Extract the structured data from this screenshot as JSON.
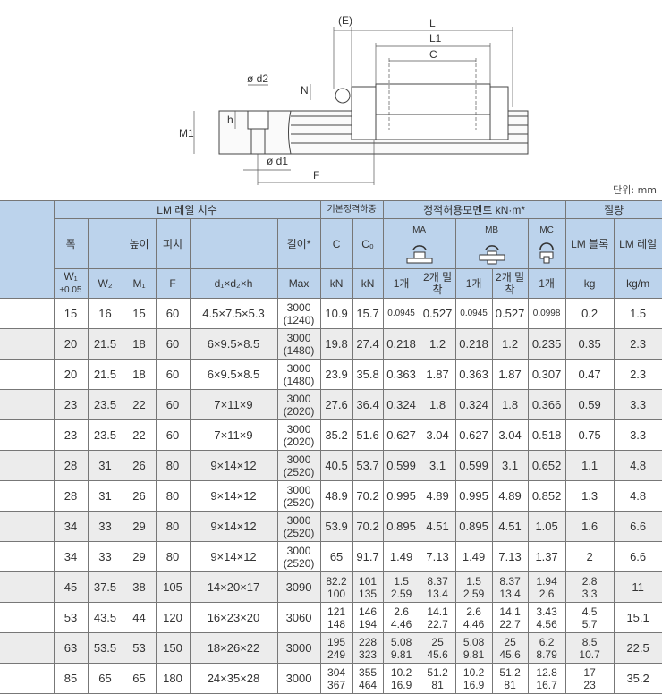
{
  "diagram": {
    "labels": {
      "E": "(E)",
      "L": "L",
      "L1": "L1",
      "C": "C",
      "N": "N",
      "d2": "ø d2",
      "h": "h",
      "M1": "M1",
      "d1": "ø d1",
      "F": "F"
    }
  },
  "unit": "단위: mm",
  "header": {
    "group_rail": "LM 레일 치수",
    "group_load": "기본정격하중",
    "group_moment": "정적허용모멘트 kN·m*",
    "group_mass": "질량",
    "width": "폭",
    "height": "높이",
    "pitch": "피치",
    "length": "길이*",
    "C": "C",
    "C0": "C₀",
    "MA": "MA",
    "MB": "MB",
    "MC": "MC",
    "block": "LM 블록",
    "rail": "LM 레일",
    "W1": "W₁",
    "W1_tol": "±0.05",
    "W2": "W₂",
    "M1": "M₁",
    "F": "F",
    "dxh": "d₁×d₂×h",
    "max": "Max",
    "kN": "kN",
    "kN0": "kN",
    "one": "1개",
    "two": "2개 밀착",
    "kg": "kg",
    "kgm": "kg/m"
  },
  "rows": [
    [
      "15",
      "16",
      "15",
      "60",
      "4.5×7.5×5.3",
      "3000\n(1240)",
      "10.9",
      "15.7",
      "0.0945",
      "0.527",
      "0.0945",
      "0.527",
      "0.0998",
      "0.2",
      "1.5"
    ],
    [
      "20",
      "21.5",
      "18",
      "60",
      "6×9.5×8.5",
      "3000\n(1480)",
      "19.8",
      "27.4",
      "0.218",
      "1.2",
      "0.218",
      "1.2",
      "0.235",
      "0.35",
      "2.3"
    ],
    [
      "20",
      "21.5",
      "18",
      "60",
      "6×9.5×8.5",
      "3000\n(1480)",
      "23.9",
      "35.8",
      "0.363",
      "1.87",
      "0.363",
      "1.87",
      "0.307",
      "0.47",
      "2.3"
    ],
    [
      "23",
      "23.5",
      "22",
      "60",
      "7×11×9",
      "3000\n(2020)",
      "27.6",
      "36.4",
      "0.324",
      "1.8",
      "0.324",
      "1.8",
      "0.366",
      "0.59",
      "3.3"
    ],
    [
      "23",
      "23.5",
      "22",
      "60",
      "7×11×9",
      "3000\n(2020)",
      "35.2",
      "51.6",
      "0.627",
      "3.04",
      "0.627",
      "3.04",
      "0.518",
      "0.75",
      "3.3"
    ],
    [
      "28",
      "31",
      "26",
      "80",
      "9×14×12",
      "3000\n(2520)",
      "40.5",
      "53.7",
      "0.599",
      "3.1",
      "0.599",
      "3.1",
      "0.652",
      "1.1",
      "4.8"
    ],
    [
      "28",
      "31",
      "26",
      "80",
      "9×14×12",
      "3000\n(2520)",
      "48.9",
      "70.2",
      "0.995",
      "4.89",
      "0.995",
      "4.89",
      "0.852",
      "1.3",
      "4.8"
    ],
    [
      "34",
      "33",
      "29",
      "80",
      "9×14×12",
      "3000\n(2520)",
      "53.9",
      "70.2",
      "0.895",
      "4.51",
      "0.895",
      "4.51",
      "1.05",
      "1.6",
      "6.6"
    ],
    [
      "34",
      "33",
      "29",
      "80",
      "9×14×12",
      "3000\n(2520)",
      "65",
      "91.7",
      "1.49",
      "7.13",
      "1.49",
      "7.13",
      "1.37",
      "2",
      "6.6"
    ],
    [
      "45",
      "37.5",
      "38",
      "105",
      "14×20×17",
      "3090",
      "82.2\n100",
      "101\n135",
      "1.5\n2.59",
      "8.37\n13.4",
      "1.5\n2.59",
      "8.37\n13.4",
      "1.94\n2.6",
      "2.8\n3.3",
      "11"
    ],
    [
      "53",
      "43.5",
      "44",
      "120",
      "16×23×20",
      "3060",
      "121\n148",
      "146\n194",
      "2.6\n4.46",
      "14.1\n22.7",
      "2.6\n4.46",
      "14.1\n22.7",
      "3.43\n4.56",
      "4.5\n5.7",
      "15.1"
    ],
    [
      "63",
      "53.5",
      "53",
      "150",
      "18×26×22",
      "3000",
      "195\n249",
      "228\n323",
      "5.08\n9.81",
      "25\n45.6",
      "5.08\n9.81",
      "25\n45.6",
      "6.2\n8.79",
      "8.5\n10.7",
      "22.5"
    ],
    [
      "85",
      "65",
      "65",
      "180",
      "24×35×28",
      "3000",
      "304\n367",
      "355\n464",
      "10.2\n16.9",
      "51.2\n81",
      "10.2\n16.9",
      "51.2\n81",
      "12.8\n16.7",
      "17\n23",
      "35.2"
    ]
  ]
}
